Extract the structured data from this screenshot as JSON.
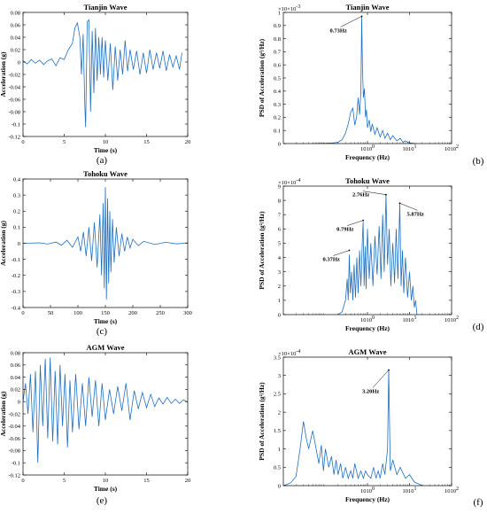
{
  "chart_data": [
    {
      "id": "a",
      "panel_label": "(a)",
      "type": "line",
      "title": "Tianjin Wave",
      "xlabel": "Time (s)",
      "ylabel": "Acceleration (g)",
      "xlim": [
        0,
        20
      ],
      "ylim": [
        -0.12,
        0.08
      ],
      "xticks": [
        0,
        5,
        10,
        15,
        20
      ],
      "yticks": [
        -0.12,
        -0.1,
        -0.08,
        -0.06,
        -0.04,
        -0.02,
        0,
        0.02,
        0.04,
        0.06,
        0.08
      ],
      "xtick_labels": [
        "0",
        "5",
        "10",
        "15",
        "20"
      ],
      "ytick_labels": [
        "-0.12",
        "-0.1",
        "-0.08",
        "-0.06",
        "-0.04",
        "-0.02",
        "0",
        "0.02",
        "0.04",
        "0.06",
        "0.08"
      ],
      "series": [
        {
          "color": "#1f6fbf",
          "x": [
            0,
            0.5,
            1,
            1.5,
            2,
            2.5,
            3,
            3.5,
            4,
            4.5,
            5,
            5.5,
            6,
            6.3,
            6.6,
            6.9,
            7.1,
            7.3,
            7.5,
            7.6,
            7.8,
            8.0,
            8.2,
            8.4,
            8.6,
            8.8,
            9.0,
            9.2,
            9.4,
            9.6,
            9.8,
            10.0,
            10.3,
            10.6,
            10.9,
            11.2,
            11.5,
            11.8,
            12.1,
            12.4,
            12.7,
            13.0,
            13.4,
            13.8,
            14.2,
            14.6,
            15.0,
            15.4,
            15.8,
            16.2,
            16.6,
            17.0,
            17.4,
            17.8,
            18.2,
            18.6,
            19.0,
            19.3
          ],
          "y": [
            0.002,
            -0.003,
            0.004,
            -0.002,
            0.003,
            -0.004,
            0.002,
            0.005,
            -0.006,
            0.007,
            0.004,
            0.02,
            0.03,
            0.055,
            0.063,
            0.04,
            -0.02,
            0.045,
            -0.07,
            -0.105,
            0.065,
            0.068,
            -0.08,
            0.05,
            -0.05,
            0.055,
            -0.03,
            0.04,
            -0.02,
            0.04,
            -0.025,
            0.035,
            -0.03,
            0.03,
            -0.045,
            0.025,
            -0.03,
            0.02,
            -0.02,
            0.035,
            -0.015,
            0.02,
            -0.012,
            0.018,
            -0.02,
            0.015,
            -0.018,
            0.02,
            -0.012,
            0.015,
            -0.01,
            0.018,
            -0.014,
            0.012,
            -0.008,
            0.01,
            -0.012,
            0.015
          ]
        }
      ]
    },
    {
      "id": "b",
      "panel_label": "(b)",
      "type": "line",
      "title": "Tianjin Wave",
      "xlabel": "Frequency (Hz)",
      "ylabel": "PSD of Acceleration (g²/Hz)",
      "xscale": "log",
      "xlim": [
        0.01,
        100
      ],
      "ylim": [
        0,
        0.001
      ],
      "multiplier": "×10",
      "multiplier_exp": "-3",
      "xticks": [
        1,
        10,
        100
      ],
      "yticks": [
        0,
        0.0001,
        0.0002,
        0.0003,
        0.0004,
        0.0005,
        0.0006,
        0.0007,
        0.0008,
        0.0009,
        0.001
      ],
      "xtick_labels": [
        "10",
        "10",
        "10"
      ],
      "xtick_exps": [
        "0",
        "1",
        "2"
      ],
      "ytick_labels": [
        "0",
        "0.1",
        "0.2",
        "0.3",
        "0.4",
        "0.5",
        "0.6",
        "0.7",
        "0.8",
        "0.9",
        "1"
      ],
      "annotations": [
        {
          "text": "0.73Hz",
          "x": 0.73,
          "y": 0.00097
        }
      ],
      "series": [
        {
          "color": "#1f6fbf",
          "x": [
            0.05,
            0.1,
            0.15,
            0.2,
            0.25,
            0.3,
            0.35,
            0.4,
            0.45,
            0.5,
            0.55,
            0.6,
            0.65,
            0.7,
            0.73,
            0.76,
            0.8,
            0.85,
            0.9,
            0.95,
            1.0,
            1.1,
            1.2,
            1.3,
            1.5,
            1.7,
            2.0,
            2.3,
            2.6,
            3.0,
            3.5,
            4,
            5,
            6,
            7,
            8,
            10,
            12,
            15
          ],
          "y": [
            0,
            2e-06,
            5e-06,
            1e-05,
            3e-05,
            8e-05,
            0.00015,
            0.00024,
            0.00027,
            0.00014,
            0.0002,
            0.00035,
            0.00022,
            0.0004,
            0.00097,
            0.0006,
            0.00035,
            0.00042,
            0.0002,
            0.00026,
            0.00012,
            0.00018,
            9e-05,
            0.00015,
            7e-05,
            0.00012,
            5e-05,
            0.0001,
            4e-05,
            8e-05,
            3e-05,
            6e-05,
            2e-05,
            4e-05,
            1e-05,
            2e-05,
            5e-06,
            2e-06,
            0
          ]
        }
      ]
    },
    {
      "id": "c",
      "panel_label": "(c)",
      "type": "line",
      "title": "Tohoku Wave",
      "xlabel": "Time (s)",
      "ylabel": "Acceleration (g)",
      "xlim": [
        0,
        300
      ],
      "ylim": [
        -0.4,
        0.4
      ],
      "xticks": [
        0,
        50,
        100,
        150,
        200,
        250,
        300
      ],
      "yticks": [
        -0.4,
        -0.3,
        -0.2,
        -0.1,
        0,
        0.1,
        0.2,
        0.3,
        0.4
      ],
      "xtick_labels": [
        "0",
        "50",
        "100",
        "150",
        "200",
        "250",
        "300"
      ],
      "ytick_labels": [
        "-0.4",
        "-0.3",
        "-0.2",
        "-0.1",
        "0",
        "0.1",
        "0.2",
        "0.3",
        "0.4"
      ],
      "series": [
        {
          "color": "#1f6fbf",
          "x": [
            0,
            30,
            45,
            60,
            70,
            80,
            90,
            100,
            105,
            110,
            115,
            120,
            125,
            130,
            135,
            140,
            143,
            146,
            148,
            150,
            152,
            154,
            156,
            158,
            160,
            163,
            166,
            170,
            175,
            180,
            185,
            190,
            195,
            200,
            210,
            220,
            240,
            260,
            280,
            300
          ],
          "y": [
            0,
            0.003,
            -0.005,
            0.008,
            -0.012,
            0.018,
            -0.025,
            0.04,
            -0.05,
            0.07,
            -0.08,
            0.1,
            -0.11,
            0.13,
            -0.15,
            0.18,
            -0.2,
            0.25,
            -0.28,
            0.35,
            -0.35,
            0.28,
            -0.25,
            0.2,
            -0.18,
            0.15,
            -0.12,
            0.1,
            -0.08,
            0.06,
            -0.05,
            0.04,
            -0.03,
            0.025,
            -0.015,
            0.012,
            -0.008,
            0.006,
            -0.004,
            0.003
          ]
        }
      ]
    },
    {
      "id": "d",
      "panel_label": "(d)",
      "type": "line",
      "title": "Tohoku Wave",
      "xlabel": "Frequency (Hz)",
      "ylabel": "PSD of Acceleration (g²/Hz)",
      "xscale": "log",
      "xlim": [
        0.01,
        100
      ],
      "ylim": [
        0,
        0.0009
      ],
      "multiplier": "×10",
      "multiplier_exp": "-4",
      "xticks": [
        1,
        10,
        100
      ],
      "yticks": [
        0,
        0.0001,
        0.0002,
        0.0003,
        0.0004,
        0.0005,
        0.0006,
        0.0007,
        0.0008,
        0.0009
      ],
      "xtick_labels": [
        "10",
        "10",
        "10"
      ],
      "xtick_exps": [
        "0",
        "1",
        "2"
      ],
      "ytick_labels": [
        "0",
        "1",
        "2",
        "3",
        "4",
        "5",
        "6",
        "7",
        "8",
        "9"
      ],
      "annotations": [
        {
          "text": "2.76Hz",
          "x": 2.76,
          "y": 0.00084
        },
        {
          "text": "5.87Hz",
          "x": 5.87,
          "y": 0.00078
        },
        {
          "text": "0.79Hz",
          "x": 0.79,
          "y": 0.00066
        },
        {
          "text": "0.37Hz",
          "x": 0.37,
          "y": 0.00045
        }
      ],
      "series": [
        {
          "color": "#1f6fbf",
          "x": [
            0.2,
            0.25,
            0.3,
            0.33,
            0.35,
            0.37,
            0.39,
            0.42,
            0.45,
            0.48,
            0.52,
            0.56,
            0.6,
            0.65,
            0.7,
            0.75,
            0.79,
            0.83,
            0.88,
            0.93,
            1.0,
            1.1,
            1.2,
            1.35,
            1.5,
            1.7,
            1.9,
            2.1,
            2.3,
            2.5,
            2.76,
            3.0,
            3.3,
            3.6,
            4.0,
            4.4,
            4.8,
            5.3,
            5.87,
            6.3,
            6.8,
            7.3,
            8,
            9,
            10,
            11,
            12,
            13,
            14,
            15
          ],
          "y": [
            0,
            2e-05,
            0.0001,
            0.00025,
            0.0001,
            0.00042,
            0.00015,
            0.0003,
            0.0001,
            0.00035,
            0.00012,
            0.0004,
            0.00015,
            0.00045,
            0.0002,
            0.0005,
            0.00065,
            0.0002,
            0.00048,
            0.00018,
            0.0006,
            0.00025,
            0.0005,
            0.0002,
            0.00055,
            0.00028,
            0.00062,
            0.00025,
            0.0007,
            0.0003,
            0.00084,
            0.00035,
            0.0006,
            0.0002,
            0.0005,
            0.00022,
            0.0006,
            0.00025,
            0.00078,
            0.0002,
            0.00045,
            0.00015,
            0.0004,
            0.00012,
            0.0003,
            0.0001,
            0.0002,
            5e-05,
            0.0001,
            0
          ]
        }
      ]
    },
    {
      "id": "e",
      "panel_label": "(e)",
      "type": "line",
      "title": "AGM Wave",
      "xlabel": "Time (s)",
      "ylabel": "Acceleration (g)",
      "xlim": [
        0,
        20
      ],
      "ylim": [
        -0.12,
        0.08
      ],
      "xticks": [
        0,
        5,
        10,
        15,
        20
      ],
      "yticks": [
        -0.12,
        -0.1,
        -0.08,
        -0.06,
        -0.04,
        -0.02,
        0,
        0.02,
        0.04,
        0.06,
        0.08
      ],
      "xtick_labels": [
        "0",
        "5",
        "10",
        "15",
        "20"
      ],
      "ytick_labels": [
        "-0.12",
        "-0.1",
        "-0.08",
        "-0.06",
        "-0.04",
        "-0.02",
        "0",
        "0.02",
        "0.04",
        "0.06",
        "0.08"
      ],
      "series": [
        {
          "color": "#1f6fbf",
          "x": [
            0,
            0.3,
            0.6,
            0.9,
            1.2,
            1.5,
            1.8,
            2.1,
            2.4,
            2.7,
            3.0,
            3.3,
            3.6,
            3.9,
            4.2,
            4.5,
            4.8,
            5.1,
            5.4,
            5.7,
            6.0,
            6.4,
            6.8,
            7.2,
            7.6,
            8.0,
            8.4,
            8.8,
            9.2,
            9.6,
            10.0,
            10.5,
            11,
            11.5,
            12,
            12.5,
            13,
            13.5,
            14,
            14.5,
            15,
            15.5,
            16,
            16.5,
            17,
            17.5,
            18,
            18.5,
            19,
            19.5,
            20
          ],
          "y": [
            0,
            0.03,
            -0.02,
            0.045,
            -0.05,
            0.05,
            -0.1,
            0.06,
            -0.04,
            0.07,
            -0.06,
            0.072,
            -0.065,
            0.05,
            -0.07,
            0.06,
            -0.04,
            0.045,
            -0.075,
            0.035,
            -0.05,
            0.045,
            -0.045,
            0.03,
            -0.04,
            0.04,
            -0.025,
            0.035,
            -0.04,
            0.03,
            -0.03,
            0.02,
            -0.02,
            0.025,
            -0.015,
            0.03,
            -0.03,
            0.018,
            -0.012,
            0.015,
            -0.01,
            0.012,
            -0.008,
            0.006,
            -0.004,
            0.007,
            -0.003,
            0.004,
            -0.003,
            0.003,
            -0.001
          ]
        }
      ]
    },
    {
      "id": "f",
      "panel_label": "(f)",
      "type": "line",
      "title": "AGM Wave",
      "xlabel": "Frequency (Hz)",
      "ylabel": "PSD of Acceleration (g²/Hz)",
      "xscale": "log",
      "xlim": [
        0.01,
        100
      ],
      "ylim": [
        0,
        0.00035
      ],
      "multiplier": "×10",
      "multiplier_exp": "-4",
      "xticks": [
        1,
        10,
        100
      ],
      "yticks": [
        0,
        5e-05,
        0.0001,
        0.00015,
        0.0002,
        0.00025,
        0.0003,
        0.00035
      ],
      "xtick_labels": [
        "10",
        "10",
        "10"
      ],
      "xtick_exps": [
        "0",
        "1",
        "2"
      ],
      "ytick_labels": [
        "0",
        "0.5",
        "1",
        "1.5",
        "2",
        "2.5",
        "3",
        "3.5"
      ],
      "annotations": [
        {
          "text": "3.20Hz",
          "x": 3.2,
          "y": 0.000315
        }
      ],
      "series": [
        {
          "color": "#1f6fbf",
          "x": [
            0.01,
            0.012,
            0.015,
            0.02,
            0.025,
            0.03,
            0.035,
            0.04,
            0.05,
            0.06,
            0.07,
            0.08,
            0.09,
            0.1,
            0.12,
            0.14,
            0.16,
            0.18,
            0.2,
            0.23,
            0.26,
            0.3,
            0.35,
            0.4,
            0.45,
            0.5,
            0.6,
            0.7,
            0.8,
            0.9,
            1.0,
            1.2,
            1.4,
            1.6,
            1.8,
            2.0,
            2.3,
            2.6,
            3.0,
            3.2,
            3.5,
            4,
            5,
            6,
            8,
            10,
            13,
            16,
            20
          ],
          "y": [
            0,
            3e-06,
            8e-06,
            2.5e-05,
            0.0001,
            0.000175,
            0.00013,
            0.0001,
            0.00015,
            0.0001,
            6e-05,
            0.00011,
            4e-05,
            0.0001,
            5e-05,
            8e-05,
            3e-05,
            7e-05,
            3e-05,
            6e-05,
            2e-05,
            5e-05,
            2e-05,
            4e-05,
            2e-05,
            6e-05,
            2e-05,
            4e-05,
            2e-05,
            4e-05,
            3e-05,
            2e-05,
            5e-05,
            2e-05,
            4e-05,
            2e-05,
            6e-05,
            3e-05,
            0.0001,
            0.000315,
            4e-05,
            7e-05,
            3e-05,
            5e-05,
            2e-05,
            3e-05,
            1e-05,
            5e-06,
            0
          ]
        }
      ]
    }
  ]
}
